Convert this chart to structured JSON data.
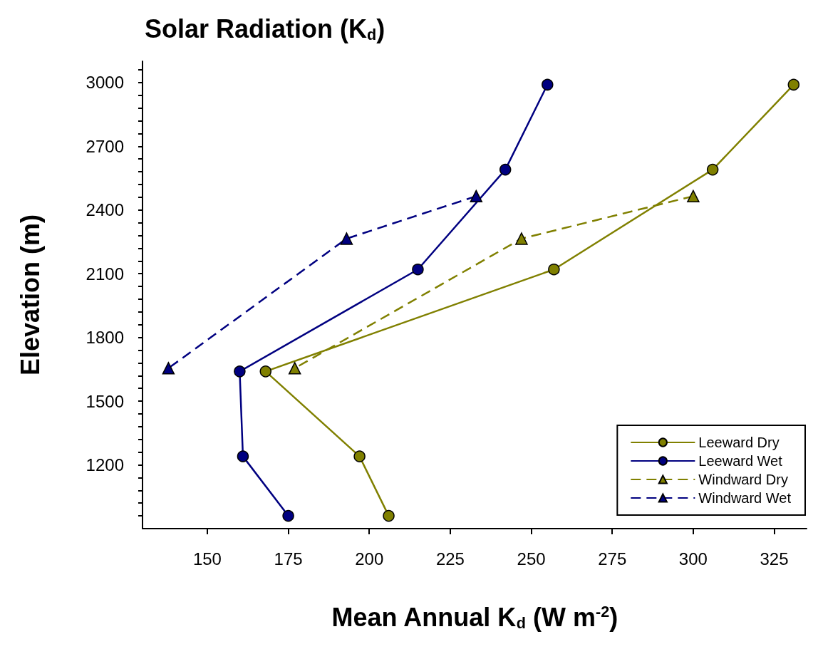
{
  "chart_data": {
    "type": "line",
    "title": "Solar Radiation (K$_{d}$)",
    "xlabel": "Mean Annual K$_{d}$ (W m$^{-2}$)",
    "ylabel": "Elevation (m)",
    "xlim": [
      130,
      335
    ],
    "xticks": [
      150,
      175,
      200,
      225,
      250,
      275,
      300,
      325
    ],
    "ylim": [
      900,
      3100
    ],
    "yticks": [
      {
        "value": 960,
        "label": null
      },
      {
        "value": 1020,
        "label": null
      },
      {
        "value": 1080,
        "label": null
      },
      {
        "value": 1140,
        "label": null
      },
      1200,
      {
        "value": 1260,
        "label": null
      },
      {
        "value": 1320,
        "label": null
      },
      {
        "value": 1380,
        "label": null
      },
      {
        "value": 1440,
        "label": null
      },
      1500,
      {
        "value": 1560,
        "label": null
      },
      {
        "value": 1620,
        "label": null
      },
      {
        "value": 1680,
        "label": null
      },
      {
        "value": 1740,
        "label": null
      },
      1800,
      {
        "value": 1860,
        "label": null
      },
      {
        "value": 1920,
        "label": null
      },
      {
        "value": 1980,
        "label": null
      },
      {
        "value": 2040,
        "label": null
      },
      2100,
      {
        "value": 2160,
        "label": null
      },
      {
        "value": 2220,
        "label": null
      },
      {
        "value": 2280,
        "label": null
      },
      {
        "value": 2340,
        "label": null
      },
      2400,
      {
        "value": 2460,
        "label": null
      },
      {
        "value": 2520,
        "label": null
      },
      {
        "value": 2580,
        "label": null
      },
      {
        "value": 2640,
        "label": null
      },
      2700,
      {
        "value": 2760,
        "label": null
      },
      {
        "value": 2820,
        "label": null
      },
      {
        "value": 2880,
        "label": null
      },
      {
        "value": 2940,
        "label": null
      },
      3000,
      {
        "value": 3060,
        "label": null
      }
    ],
    "grid": false,
    "legend": "bottom right",
    "series": [
      {
        "name": "Leeward Dry",
        "color": "#808000",
        "marker": "circle",
        "line_style": "solid",
        "x": [
          331,
          306,
          257,
          168,
          197,
          206
        ],
        "values": [
          2990,
          2590,
          2120,
          1640,
          1240,
          960
        ]
      },
      {
        "name": "Leeward Wet",
        "color": "#000080",
        "marker": "circle",
        "line_style": "solid",
        "x": [
          255,
          242,
          215,
          160,
          161,
          175
        ],
        "values": [
          2990,
          2590,
          2120,
          1640,
          1240,
          960
        ]
      },
      {
        "name": "Windward Dry",
        "color": "#808000",
        "marker": "triangle",
        "line_style": "dashed",
        "x": [
          300,
          247,
          177
        ],
        "values": [
          2465,
          2265,
          1655
        ]
      },
      {
        "name": "Windward Wet",
        "color": "#000080",
        "marker": "triangle",
        "line_style": "dashed",
        "x": [
          233,
          193,
          138
        ],
        "values": [
          2465,
          2265,
          1655
        ]
      }
    ]
  }
}
